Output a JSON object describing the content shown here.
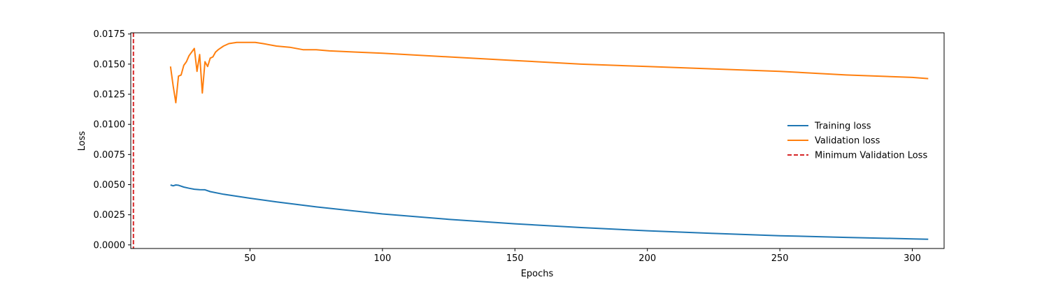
{
  "chart_data": {
    "type": "line",
    "title": "",
    "xlabel": "Epochs",
    "ylabel": "Loss",
    "xlim": [
      5,
      312
    ],
    "ylim": [
      -0.0003,
      0.0176
    ],
    "xticks": [
      50,
      100,
      150,
      200,
      250,
      300
    ],
    "xtick_labels": [
      "50",
      "100",
      "150",
      "200",
      "250",
      "300"
    ],
    "yticks": [
      0.0,
      0.0025,
      0.005,
      0.0075,
      0.01,
      0.0125,
      0.015,
      0.0175
    ],
    "ytick_labels": [
      "0.0000",
      "0.0025",
      "0.0050",
      "0.0075",
      "0.0100",
      "0.0125",
      "0.0150",
      "0.0175"
    ],
    "grid": false,
    "legend_position": "right",
    "series": [
      {
        "name": "Training loss",
        "color": "#1f77b4",
        "style": "solid",
        "x": [
          20,
          21,
          22,
          23,
          25,
          27,
          29,
          31,
          33,
          35,
          40,
          50,
          60,
          75,
          100,
          125,
          150,
          175,
          200,
          225,
          250,
          275,
          300,
          306
        ],
        "y": [
          0.00497,
          0.0049,
          0.00497,
          0.00495,
          0.0048,
          0.0047,
          0.00462,
          0.00458,
          0.00457,
          0.00442,
          0.0042,
          0.00387,
          0.00357,
          0.00315,
          0.00257,
          0.00212,
          0.00175,
          0.00144,
          0.00117,
          0.00095,
          0.00076,
          0.00062,
          0.0005,
          0.00047
        ]
      },
      {
        "name": "Validation loss",
        "color": "#ff7f0e",
        "style": "solid",
        "x": [
          20,
          21,
          22,
          23,
          24,
          25,
          26,
          27,
          28,
          29,
          30,
          31,
          32,
          33,
          34,
          35,
          36,
          37,
          38,
          40,
          42,
          45,
          48,
          52,
          55,
          60,
          65,
          70,
          75,
          80,
          90,
          100,
          125,
          150,
          175,
          200,
          225,
          250,
          275,
          300,
          306
        ],
        "y": [
          0.0148,
          0.0132,
          0.0118,
          0.014,
          0.0141,
          0.0149,
          0.0152,
          0.0157,
          0.016,
          0.0163,
          0.0144,
          0.0158,
          0.0126,
          0.0152,
          0.0148,
          0.0155,
          0.0156,
          0.016,
          0.0162,
          0.0165,
          0.0167,
          0.0168,
          0.0168,
          0.0168,
          0.0167,
          0.0165,
          0.0164,
          0.0162,
          0.0162,
          0.0161,
          0.016,
          0.0159,
          0.0156,
          0.0153,
          0.015,
          0.0148,
          0.0146,
          0.0144,
          0.0141,
          0.0139,
          0.0138
        ]
      },
      {
        "name": "Minimum Validation Loss",
        "color": "#d62728",
        "style": "dashed",
        "type": "vline",
        "x_value": 6
      }
    ]
  }
}
